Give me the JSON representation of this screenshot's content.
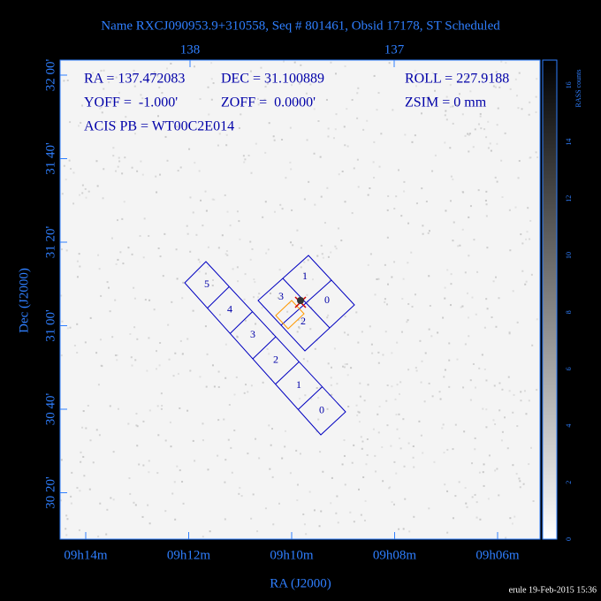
{
  "title": "Name RXCJ090953.9+310558, Seq # 801461, Obsid 17178, ST Scheduled",
  "header": {
    "lines": [
      [
        "RA = 137.472083",
        "DEC = 31.100889",
        "ROLL = 227.9188"
      ],
      [
        "YOFF =  -1.000'",
        "ZOFF =  0.0000'",
        "ZSIM = 0 mm"
      ],
      [
        "ACIS PB = WT00C2E014"
      ]
    ]
  },
  "axes": {
    "x_label": "RA (J2000)",
    "y_label": "Dec (J2000)",
    "top_ticks": [
      "138",
      "137"
    ],
    "bottom_ticks": [
      "09h14m",
      "09h12m",
      "09h10m",
      "09h08m",
      "09h06m"
    ],
    "left_ticks": [
      "32 00'",
      "31 40'",
      "31 20'",
      "31 00'",
      "30 40'",
      "30 20'"
    ]
  },
  "colorbar": {
    "label": "RASS counts",
    "ticks": [
      "0",
      "2",
      "4",
      "6",
      "8",
      "10",
      "12",
      "14",
      "16"
    ]
  },
  "chips": {
    "acis_i": [
      "0",
      "1",
      "2",
      "3"
    ],
    "acis_s": [
      "0",
      "1",
      "2",
      "3",
      "4",
      "5"
    ]
  },
  "footer": "erule 19-Feb-2015 15:36"
}
